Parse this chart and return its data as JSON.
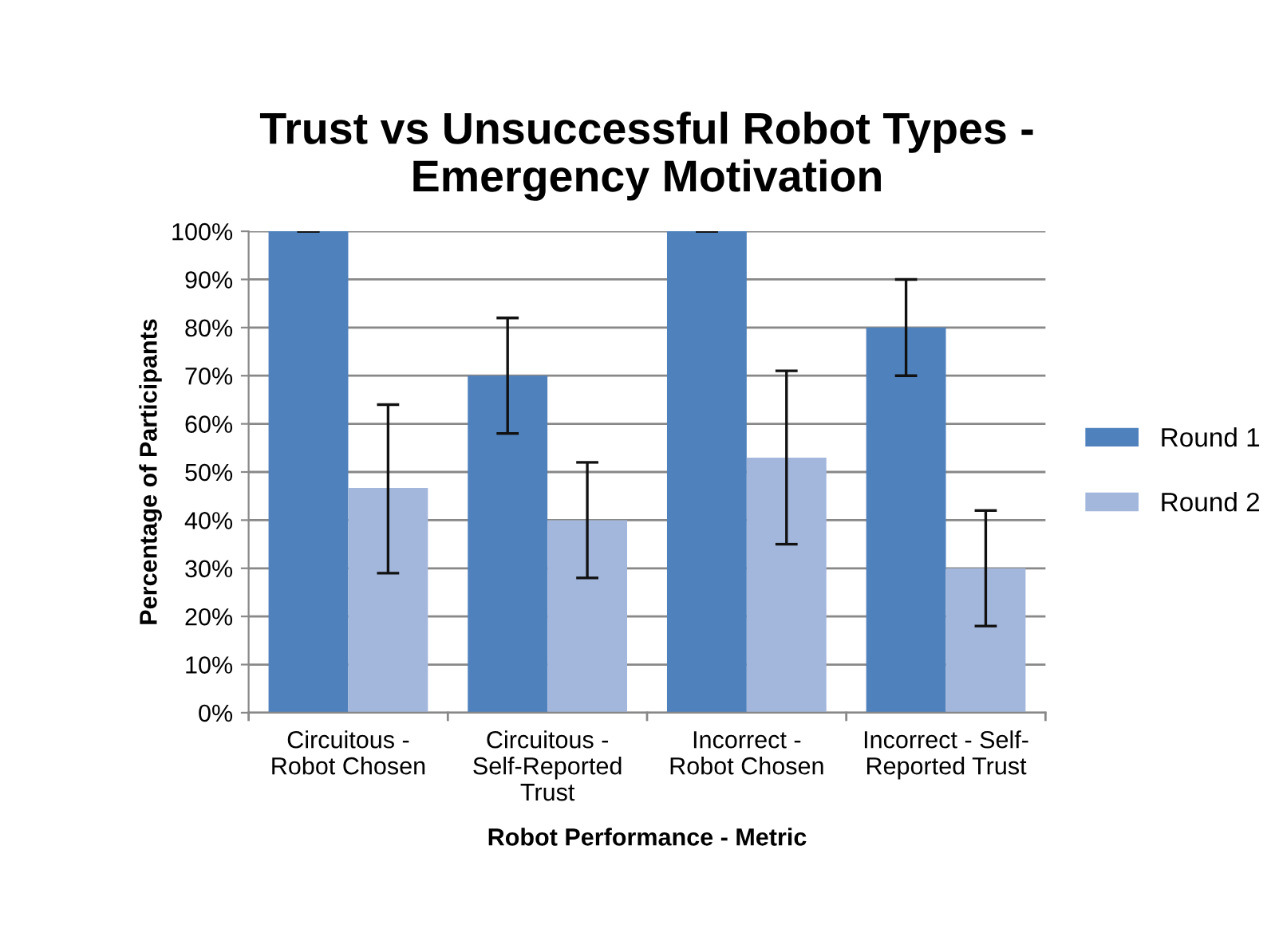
{
  "chart_data": {
    "type": "bar",
    "title": "Trust vs Unsuccessful Robot Types -\nEmergency Motivation",
    "xlabel": "Robot Performance - Metric",
    "ylabel": "Percentage of Participants",
    "categories": [
      "Circuitous -\nRobot Chosen",
      "Circuitous -\nSelf-Reported\nTrust",
      "Incorrect -\nRobot Chosen",
      "Incorrect - Self-\nReported Trust"
    ],
    "series": [
      {
        "name": "Round 1",
        "color": "#4f81bd",
        "values": [
          100,
          70,
          100,
          80
        ],
        "errors": [
          0,
          [
            58,
            82
          ],
          0,
          [
            70,
            90
          ]
        ]
      },
      {
        "name": "Round 2",
        "color": "#a3b7dc",
        "values": [
          46.7,
          40,
          53,
          30
        ],
        "errors": [
          [
            29,
            64
          ],
          [
            28,
            52
          ],
          [
            35,
            71
          ],
          [
            18,
            42
          ]
        ]
      }
    ],
    "ylim": [
      0,
      100
    ],
    "yticks": [
      {
        "value": 0,
        "label": "0%"
      },
      {
        "value": 10,
        "label": "10%"
      },
      {
        "value": 20,
        "label": "20%"
      },
      {
        "value": 30,
        "label": "30%"
      },
      {
        "value": 40,
        "label": "40%"
      },
      {
        "value": 50,
        "label": "50%"
      },
      {
        "value": 60,
        "label": "60%"
      },
      {
        "value": 70,
        "label": "70%"
      },
      {
        "value": 80,
        "label": "80%"
      },
      {
        "value": 90,
        "label": "90%"
      },
      {
        "value": 100,
        "label": "100%"
      }
    ],
    "grid": "y",
    "legend": "right"
  }
}
